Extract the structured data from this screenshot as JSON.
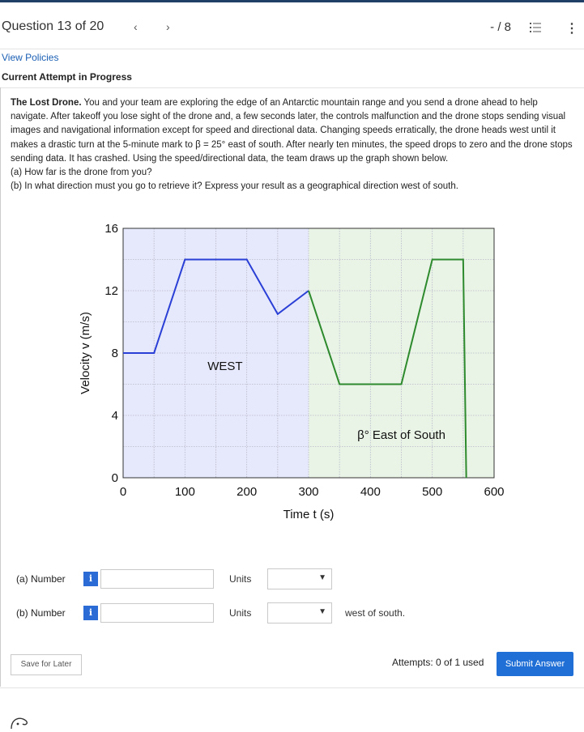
{
  "header": {
    "question_label": "Question 13 of 20",
    "prev_icon": "chevron-left-icon",
    "next_icon": "chevron-right-icon",
    "score": "- / 8",
    "list_icon": "list-icon",
    "menu_icon": "kebab-menu-icon"
  },
  "links": {
    "view_policies": "View Policies",
    "attempt_status": "Current Attempt in Progress"
  },
  "problem": {
    "title": "The Lost Drone.",
    "body": " You and your team are exploring the edge of an Antarctic mountain range and you send a drone ahead to help navigate. After takeoff you lose sight of the drone and, a few seconds later, the controls malfunction and the drone stops sending visual images and navigational information except for speed and directional data. Changing speeds erratically, the drone heads west until it makes a drastic turn at the 5-minute mark to β = 25° east of south. After nearly ten minutes, the speed drops to zero and the drone stops sending data. It has crashed. Using the speed/directional data, the team draws up the graph shown below.",
    "part_a": "(a) How far is the drone from you?",
    "part_b": "(b) In what direction must you go to retrieve it? Express your result as a geographical direction west of south."
  },
  "chart_data": {
    "type": "line",
    "xlabel": "Time t (s)",
    "ylabel": "Velocity v (m/s)",
    "xlim": [
      0,
      600
    ],
    "ylim": [
      0,
      16
    ],
    "x_ticks": [
      "0",
      "100",
      "200",
      "300",
      "400",
      "500",
      "600"
    ],
    "y_ticks": [
      "0",
      "4",
      "8",
      "12",
      "16"
    ],
    "regions": [
      {
        "label": "WEST",
        "x_range": [
          0,
          300
        ],
        "color": "#e6e9fb"
      },
      {
        "label": "β° East of South",
        "x_range": [
          300,
          600
        ],
        "color": "#e9f3e6"
      }
    ],
    "series": [
      {
        "color": "#2a3fd6",
        "x": [
          0,
          50,
          100,
          200,
          250,
          300
        ],
        "y": [
          8,
          8,
          14,
          14,
          10.5,
          12
        ]
      },
      {
        "color": "#2d8a2d",
        "x": [
          300,
          350,
          450,
          500,
          550,
          550,
          555
        ],
        "y": [
          12,
          6,
          6,
          14,
          14,
          14,
          0
        ]
      }
    ]
  },
  "answers": {
    "a_label": "(a) Number",
    "b_label": "(b) Number",
    "info_glyph": "i",
    "units_label": "Units",
    "a_value": "",
    "b_value": "",
    "a_units": "",
    "b_units": "",
    "b_suffix": "west of south."
  },
  "footer": {
    "save_label": "Save for Later",
    "attempts_text": "Attempts: 0 of 1 used",
    "submit_label": "Submit Answer"
  }
}
